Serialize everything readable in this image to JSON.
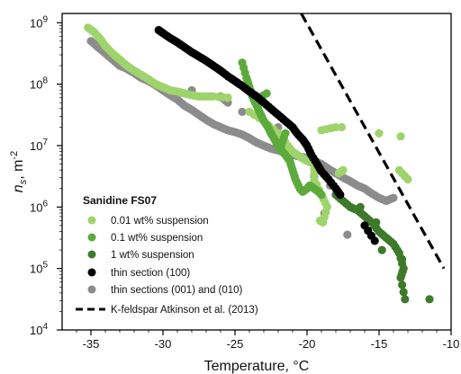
{
  "chart_data": {
    "type": "scatter",
    "xlabel": "Temperature, °C",
    "ylabel_main": "n",
    "ylabel_sub": "s",
    "ylabel_rest": ", m",
    "ylabel_sup": "-2",
    "xlim": [
      -37,
      -10
    ],
    "ylim_log10": [
      4,
      9.15
    ],
    "yscale": "log",
    "x_ticks": [
      -35,
      -30,
      -25,
      -20,
      -15,
      -10
    ],
    "x_tick_labels": [
      "-35",
      "-30",
      "-25",
      "-20",
      "-15",
      "-10"
    ],
    "y_ticks_log10": [
      4,
      5,
      6,
      7,
      8,
      9
    ],
    "y_tick_bases": [
      "10",
      "10",
      "10",
      "10",
      "10",
      "10"
    ],
    "y_tick_exps": [
      "4",
      "5",
      "6",
      "7",
      "8",
      "9"
    ],
    "legend": {
      "title": "Sanidine FS07",
      "placement": "bottom-left"
    },
    "series": [
      {
        "name": "0.01 wt% suspension",
        "color": "#9fd36b",
        "marker": "circle",
        "points": [
          [
            -35.2,
            8.92
          ],
          [
            -34.8,
            8.85
          ],
          [
            -34.4,
            8.75
          ],
          [
            -34.0,
            8.62
          ],
          [
            -33.5,
            8.5
          ],
          [
            -33.0,
            8.4
          ],
          [
            -32.5,
            8.3
          ],
          [
            -32.0,
            8.22
          ],
          [
            -31.5,
            8.15
          ],
          [
            -31.0,
            8.08
          ],
          [
            -30.5,
            8.0
          ],
          [
            -30.0,
            7.95
          ],
          [
            -29.5,
            7.9
          ],
          [
            -29.0,
            7.88
          ],
          [
            -28.5,
            7.85
          ],
          [
            -28.0,
            7.82
          ],
          [
            -27.5,
            7.8
          ],
          [
            -27.0,
            7.8
          ],
          [
            -26.5,
            7.8
          ],
          [
            -25.5,
            7.78
          ],
          [
            -24.0,
            7.55
          ],
          [
            -23.0,
            7.4
          ],
          [
            -22.0,
            7.2
          ],
          [
            -21.5,
            7.05
          ],
          [
            -21.0,
            6.9
          ],
          [
            -20.5,
            6.82
          ],
          [
            -20.0,
            6.75
          ],
          [
            -19.5,
            6.7
          ],
          [
            -19.5,
            6.45
          ],
          [
            -19.0,
            6.2
          ],
          [
            -18.6,
            6.0
          ],
          [
            -18.9,
            5.75
          ],
          [
            -19.1,
            5.78
          ],
          [
            -17.8,
            6.55
          ],
          [
            -17.5,
            6.6
          ],
          [
            -15.0,
            7.2
          ],
          [
            -13.5,
            7.15
          ],
          [
            -13.6,
            6.6
          ],
          [
            -13.0,
            6.45
          ],
          [
            -18.0,
            7.3
          ],
          [
            -19.0,
            7.25
          ],
          [
            -17.6,
            7.3
          ]
        ]
      },
      {
        "name": "0.1 wt% suspension",
        "color": "#5caa3c",
        "marker": "circle",
        "points": [
          [
            -24.5,
            8.35
          ],
          [
            -24.2,
            8.1
          ],
          [
            -24.0,
            7.95
          ],
          [
            -23.8,
            7.8
          ],
          [
            -23.5,
            7.65
          ],
          [
            -23.2,
            7.5
          ],
          [
            -23.0,
            7.4
          ],
          [
            -22.7,
            7.3
          ],
          [
            -22.5,
            7.2
          ],
          [
            -22.2,
            7.08
          ],
          [
            -22.0,
            6.98
          ],
          [
            -21.7,
            6.9
          ],
          [
            -21.5,
            6.85
          ],
          [
            -21.2,
            6.75
          ],
          [
            -21.0,
            6.6
          ],
          [
            -20.8,
            6.45
          ],
          [
            -20.5,
            6.3
          ],
          [
            -20.3,
            6.25
          ],
          [
            -20.0,
            6.3
          ],
          [
            -19.8,
            6.35
          ],
          [
            -19.5,
            6.3
          ],
          [
            -19.2,
            6.25
          ],
          [
            -19.0,
            6.2
          ],
          [
            -21.5,
            7.2
          ],
          [
            -21.8,
            7.0
          ],
          [
            -22.8,
            7.85
          ],
          [
            -23.5,
            7.75
          ]
        ]
      },
      {
        "name": "1 wt% suspension",
        "color": "#3d7a2a",
        "marker": "circle",
        "points": [
          [
            -18.0,
            6.2
          ],
          [
            -17.5,
            6.1
          ],
          [
            -17.0,
            6.0
          ],
          [
            -16.5,
            5.95
          ],
          [
            -16.0,
            5.85
          ],
          [
            -15.5,
            5.75
          ],
          [
            -15.0,
            5.6
          ],
          [
            -14.5,
            5.5
          ],
          [
            -14.0,
            5.4
          ],
          [
            -13.6,
            5.25
          ],
          [
            -13.3,
            5.0
          ],
          [
            -13.5,
            4.85
          ],
          [
            -13.2,
            4.5
          ],
          [
            -11.5,
            4.5
          ],
          [
            -15.2,
            5.75
          ],
          [
            -16.3,
            6.0
          ],
          [
            -14.8,
            5.3
          ],
          [
            -13.4,
            5.15
          ]
        ]
      },
      {
        "name": "thin section (100)",
        "color": "#000000",
        "marker": "circle",
        "points": [
          [
            -30.3,
            8.88
          ],
          [
            -30.0,
            8.83
          ],
          [
            -29.5,
            8.75
          ],
          [
            -29.0,
            8.68
          ],
          [
            -28.5,
            8.6
          ],
          [
            -28.0,
            8.52
          ],
          [
            -27.5,
            8.45
          ],
          [
            -27.0,
            8.38
          ],
          [
            -26.5,
            8.3
          ],
          [
            -26.0,
            8.22
          ],
          [
            -25.5,
            8.13
          ],
          [
            -25.0,
            8.05
          ],
          [
            -24.5,
            7.97
          ],
          [
            -24.0,
            7.88
          ],
          [
            -23.5,
            7.8
          ],
          [
            -23.0,
            7.7
          ],
          [
            -22.5,
            7.6
          ],
          [
            -22.0,
            7.5
          ],
          [
            -21.5,
            7.4
          ],
          [
            -21.0,
            7.3
          ],
          [
            -20.7,
            7.2
          ],
          [
            -20.3,
            7.1
          ],
          [
            -20.0,
            7.0
          ],
          [
            -19.7,
            6.85
          ],
          [
            -19.3,
            6.7
          ],
          [
            -19.0,
            6.58
          ],
          [
            -18.5,
            6.45
          ],
          [
            -18.0,
            6.3
          ],
          [
            -17.7,
            6.2
          ],
          [
            -16.0,
            5.7
          ],
          [
            -15.3,
            5.45
          ]
        ]
      },
      {
        "name": "thin sections (001) and (010)",
        "color": "#8c8c8c",
        "marker": "circle",
        "points": [
          [
            -35.0,
            8.7
          ],
          [
            -34.5,
            8.6
          ],
          [
            -34.0,
            8.5
          ],
          [
            -33.5,
            8.4
          ],
          [
            -33.0,
            8.3
          ],
          [
            -32.5,
            8.25
          ],
          [
            -32.0,
            8.18
          ],
          [
            -31.5,
            8.1
          ],
          [
            -31.0,
            8.05
          ],
          [
            -30.5,
            7.98
          ],
          [
            -30.0,
            7.9
          ],
          [
            -29.5,
            7.82
          ],
          [
            -29.0,
            7.75
          ],
          [
            -28.5,
            7.65
          ],
          [
            -28.0,
            7.58
          ],
          [
            -27.5,
            7.5
          ],
          [
            -27.0,
            7.42
          ],
          [
            -26.5,
            7.35
          ],
          [
            -26.0,
            7.3
          ],
          [
            -25.5,
            7.25
          ],
          [
            -25.0,
            7.22
          ],
          [
            -24.5,
            7.18
          ],
          [
            -24.0,
            7.12
          ],
          [
            -23.5,
            7.05
          ],
          [
            -23.0,
            7.0
          ],
          [
            -22.5,
            6.95
          ],
          [
            -22.0,
            6.92
          ],
          [
            -21.5,
            6.88
          ],
          [
            -21.0,
            6.85
          ],
          [
            -20.5,
            6.82
          ],
          [
            -20.0,
            6.8
          ],
          [
            -19.5,
            6.75
          ],
          [
            -19.0,
            6.7
          ],
          [
            -18.5,
            6.62
          ],
          [
            -18.0,
            6.55
          ],
          [
            -17.5,
            6.48
          ],
          [
            -17.0,
            6.42
          ],
          [
            -16.5,
            6.35
          ],
          [
            -16.0,
            6.3
          ],
          [
            -15.5,
            6.22
          ],
          [
            -15.0,
            6.15
          ],
          [
            -14.5,
            6.1
          ],
          [
            -14.0,
            6.15
          ],
          [
            -17.2,
            5.55
          ],
          [
            -18.8,
            5.9
          ],
          [
            -17.0,
            6.0
          ],
          [
            -19.2,
            6.25
          ],
          [
            -26.0,
            7.8
          ],
          [
            -25.5,
            7.7
          ],
          [
            -28.0,
            7.9
          ],
          [
            -24.5,
            7.55
          ],
          [
            -22.0,
            7.3
          ],
          [
            -18.4,
            6.35
          ],
          [
            -19.5,
            6.5
          ]
        ]
      }
    ],
    "reference_line": {
      "name": "K-feldspar Atkinson et al. (2013)",
      "color": "#000000",
      "style": "dashed",
      "x": [
        -20.4,
        -10.5
      ],
      "y_log10": [
        9.15,
        5.0
      ]
    }
  }
}
